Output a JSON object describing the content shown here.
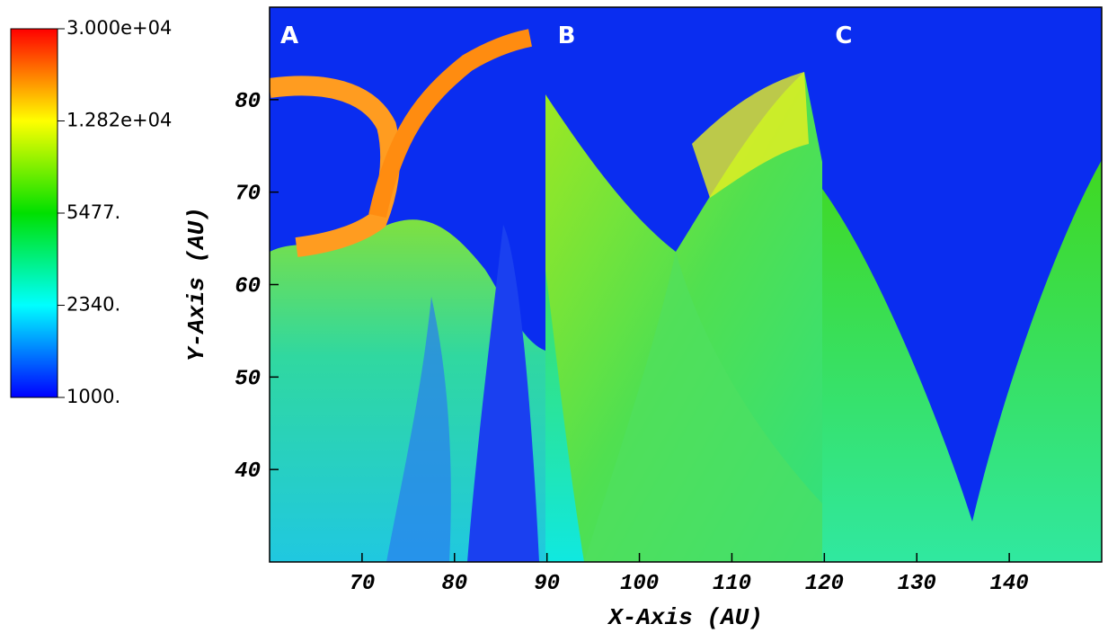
{
  "chart_data": {
    "type": "heatmap",
    "xlabel": "X-Axis (AU)",
    "ylabel": "Y-Axis (AU)",
    "xlim": [
      60,
      150
    ],
    "xticks": [
      70,
      80,
      90,
      100,
      110,
      120,
      130,
      140
    ],
    "ylim": [
      30,
      90
    ],
    "yticks": [
      40,
      50,
      60,
      70,
      80
    ],
    "panels": [
      {
        "label": "A",
        "x": 60
      },
      {
        "label": "B",
        "x": 90
      },
      {
        "label": "C",
        "x": 120
      }
    ],
    "colorbar": {
      "log": true,
      "clim": [
        1000,
        30000
      ],
      "ticks": [
        {
          "value": 30000,
          "label": "3.000e+04"
        },
        {
          "value": 12820,
          "label": "1.282e+04"
        },
        {
          "value": 5477,
          "label": "5477."
        },
        {
          "value": 2340,
          "label": "2340."
        },
        {
          "value": 1000,
          "label": "1000."
        }
      ]
    }
  }
}
